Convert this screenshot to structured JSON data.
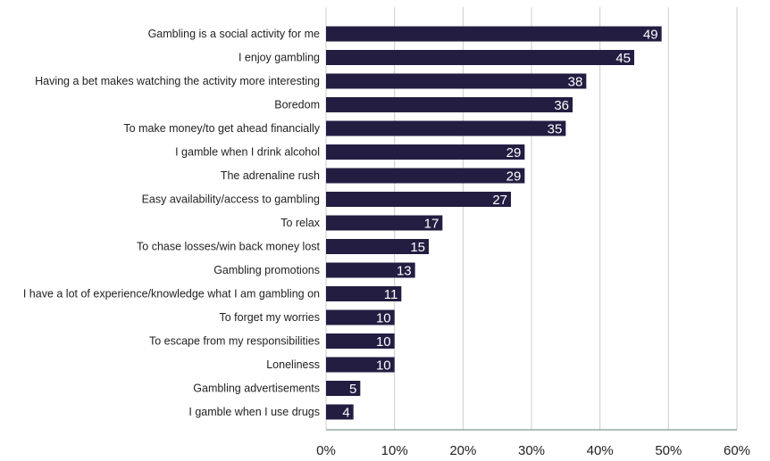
{
  "chart_data": {
    "type": "bar",
    "orientation": "horizontal",
    "categories": [
      "Gambling is a social activity for me",
      "I enjoy gambling",
      "Having a bet makes watching the activity more interesting",
      "Boredom",
      "To make money/to get ahead financially",
      "I gamble when I drink alcohol",
      "The adrenaline rush",
      "Easy availability/access to gambling",
      "To relax",
      "To chase losses/win back money lost",
      "Gambling promotions",
      "I have a lot of experience/knowledge what I am gambling on",
      "To forget my worries",
      "To escape from my responsibilities",
      "Loneliness",
      "Gambling advertisements",
      "I gamble when I use drugs"
    ],
    "values": [
      49,
      45,
      38,
      36,
      35,
      29,
      29,
      27,
      17,
      15,
      13,
      11,
      10,
      10,
      10,
      5,
      4
    ],
    "data_labels": [
      "49",
      "45",
      "38",
      "36",
      "35",
      "29",
      "29",
      "27",
      "17",
      "15",
      "13",
      "11",
      "10",
      "10",
      "10",
      "5",
      "4"
    ],
    "xlim": [
      0,
      60
    ],
    "xticks": [
      "0%",
      "10%",
      "20%",
      "30%",
      "40%",
      "50%",
      "60%"
    ],
    "title": "",
    "xlabel": "",
    "ylabel": "",
    "grid": "vertical",
    "legend": "none",
    "colors": {
      "bar": "#231d42",
      "grid": "#cccccc",
      "axis": "#7a9a8c",
      "text": "#222222",
      "label": "#ffffff"
    }
  }
}
